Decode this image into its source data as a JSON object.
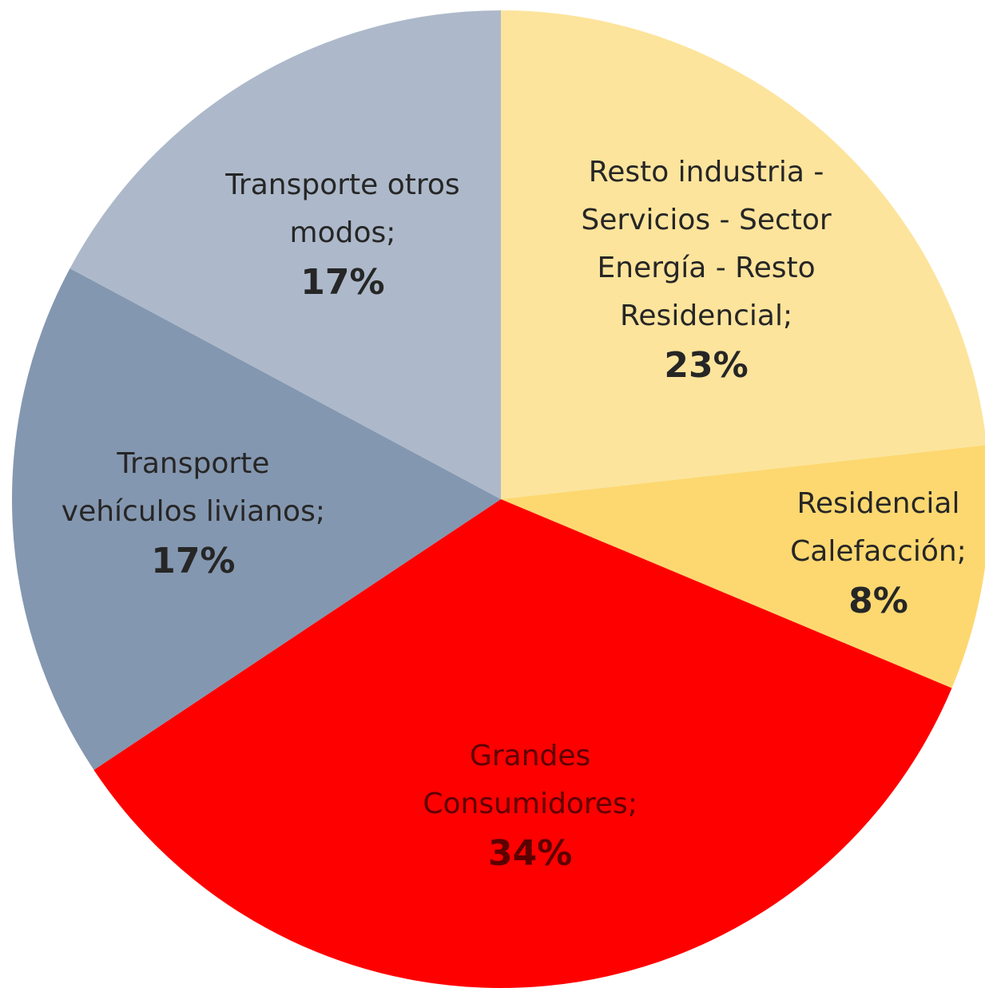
{
  "chart_data": {
    "type": "pie",
    "categories": [
      "Resto industria - Servicios - Sector Energía - Resto Residencial;",
      "Residencial Calefacción;",
      "Grandes Consumidores;",
      "Transporte vehículos livianos;",
      "Transporte otros modos;"
    ],
    "values": [
      23,
      8,
      34,
      17,
      17
    ],
    "value_labels": [
      "23%",
      "8%",
      "34%",
      "17%",
      "17%"
    ],
    "colors": [
      "#fde49c",
      "#fdd870",
      "#ff0000",
      "#8497b0",
      "#adb9ca"
    ]
  }
}
